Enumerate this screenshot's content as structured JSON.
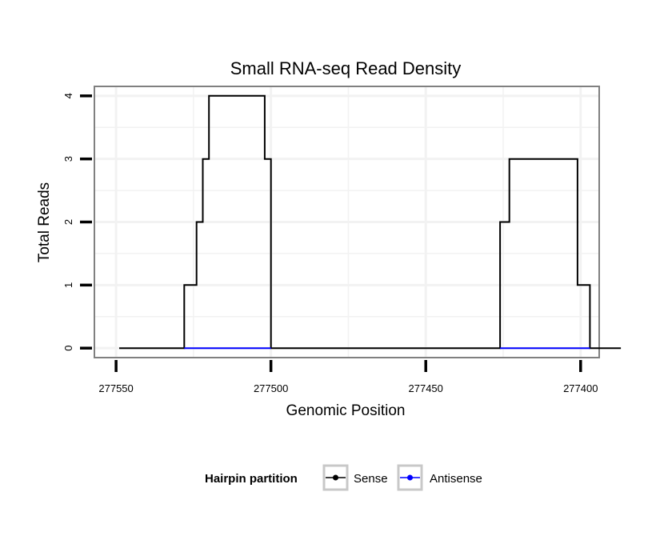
{
  "chart_data": {
    "type": "line",
    "title": "Small RNA-seq Read Density",
    "xlabel": "Genomic Position",
    "ylabel": "Total Reads",
    "xlim": [
      277557,
      277394
    ],
    "x_reversed": true,
    "ylim": [
      -0.15,
      4.15
    ],
    "xticks": [
      277550,
      277500,
      277450,
      277400
    ],
    "xtick_labels": [
      "277550",
      "277500",
      "277450",
      "277400"
    ],
    "yticks": [
      0,
      1,
      2,
      3,
      4
    ],
    "ytick_labels": [
      "0",
      "1",
      "2",
      "3",
      "4"
    ],
    "grid": true,
    "legend": {
      "title": "Hairpin partition",
      "position": "bottom"
    },
    "series": [
      {
        "name": "Sense",
        "color": "#000000",
        "x": [
          277549,
          277528,
          277528,
          277524,
          277524,
          277522,
          277522,
          277520,
          277520,
          277518,
          277518,
          277502,
          277502,
          277500,
          277500,
          277426,
          277426,
          277423,
          277423,
          277418,
          277418,
          277401,
          277401,
          277397,
          277397,
          277387
        ],
        "y": [
          0,
          0,
          1,
          1,
          2,
          2,
          3,
          3,
          4,
          4,
          4,
          4,
          3,
          3,
          0,
          0,
          2,
          2,
          3,
          3,
          3,
          3,
          1,
          1,
          0,
          0
        ]
      },
      {
        "name": "Antisense",
        "color": "#0000ff",
        "x": [
          277528,
          277500,
          277500,
          277426,
          277426,
          277397
        ],
        "y": [
          0,
          0,
          null,
          null,
          0,
          0
        ]
      }
    ]
  }
}
